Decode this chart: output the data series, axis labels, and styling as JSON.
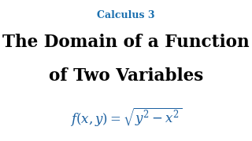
{
  "subtitle": "Calculus 3",
  "subtitle_color": "#1a6faf",
  "subtitle_fontsize": 9,
  "title_line1": "The Domain of a Function",
  "title_line2": "of Two Variables",
  "title_color": "#000000",
  "title_fontsize": 15.5,
  "title_fontweight": "bold",
  "formula": "$f(x, y) = \\sqrt{y^2 - x^2}$",
  "formula_color": "#1a5fa0",
  "formula_fontsize": 12,
  "background_color": "#ffffff"
}
